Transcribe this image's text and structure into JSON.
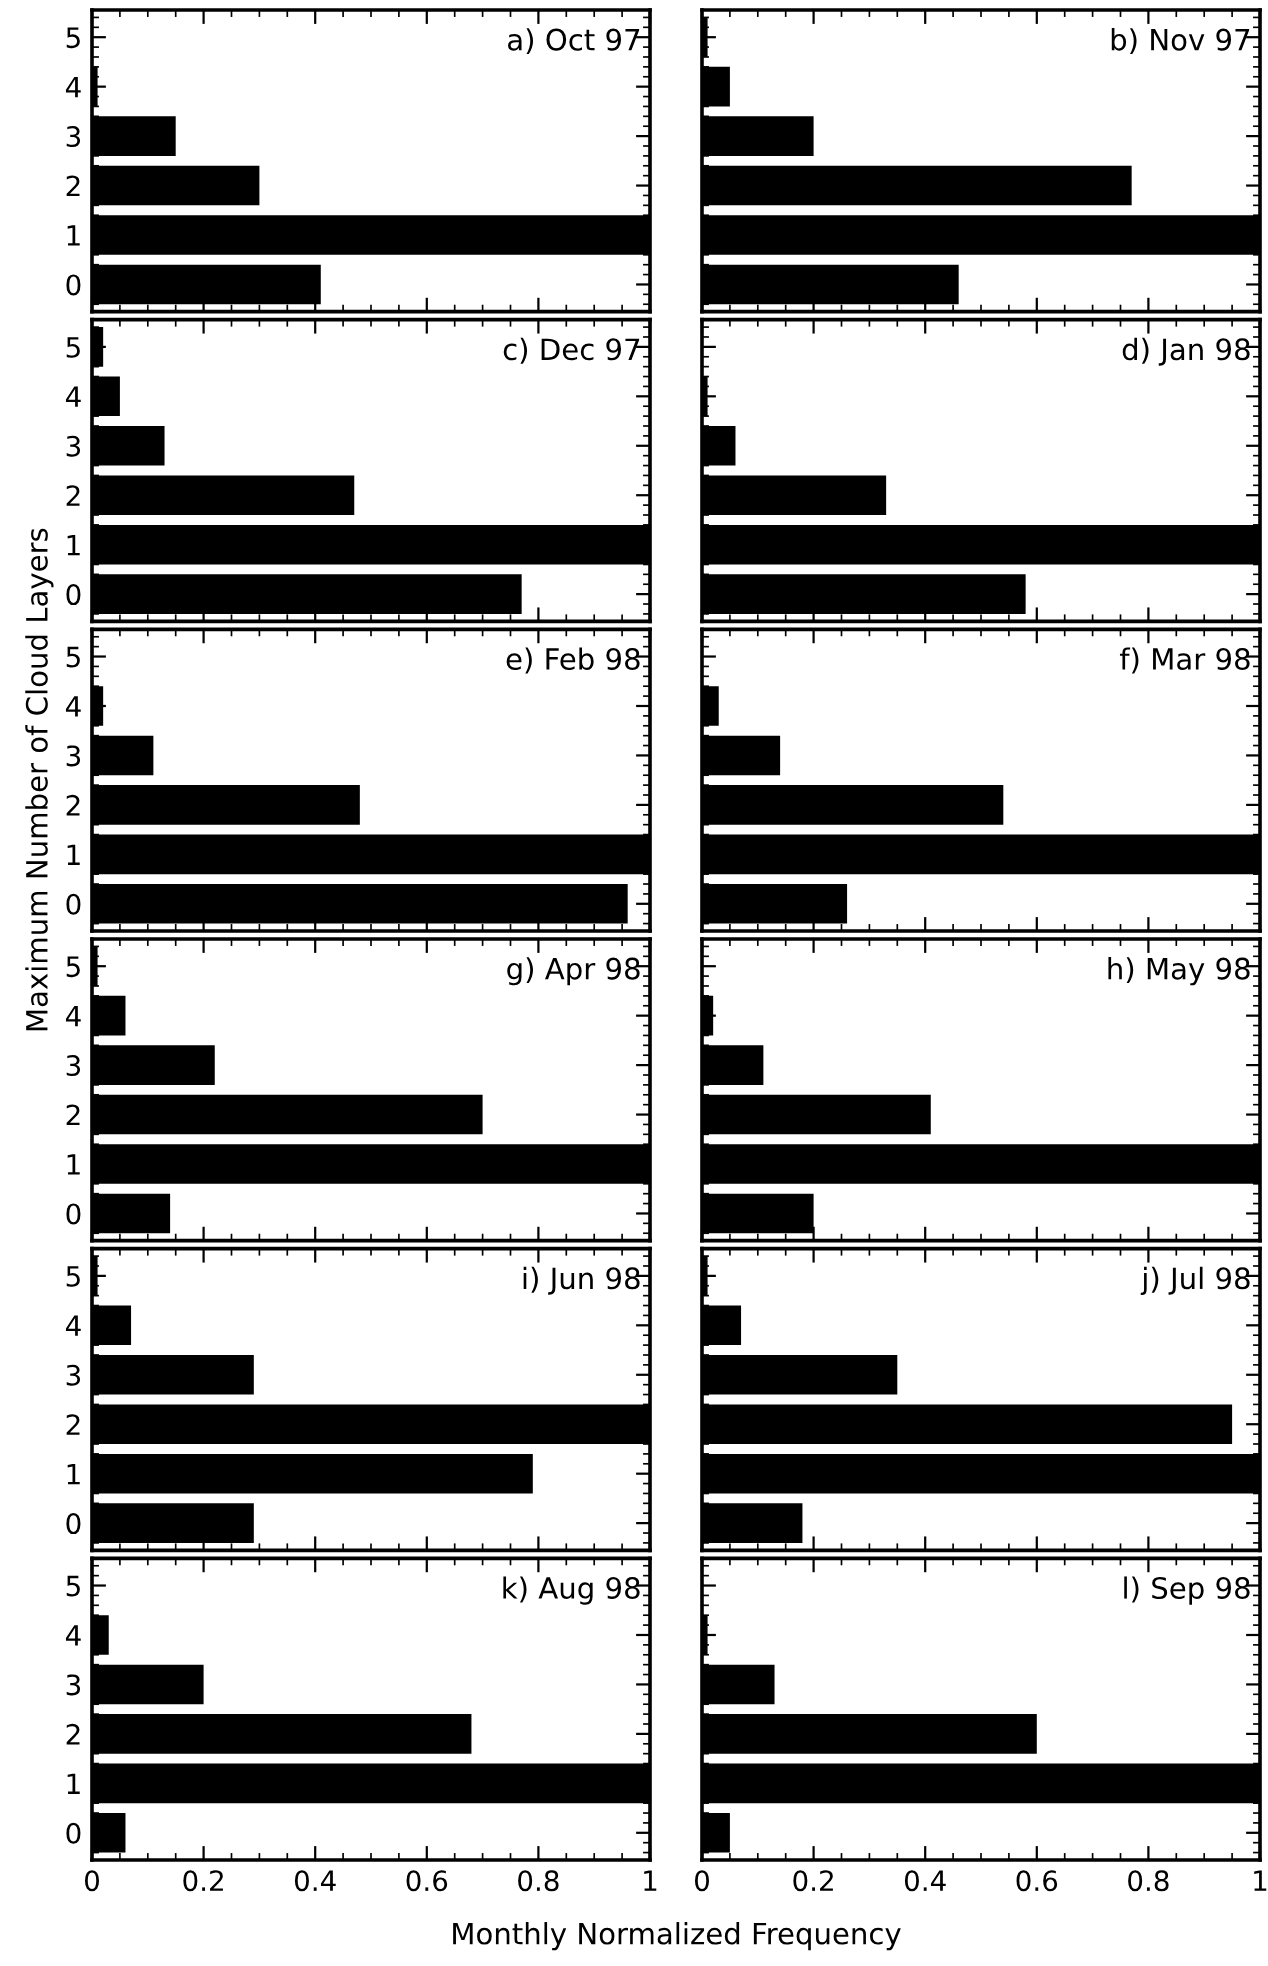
{
  "chart_data": [
    {
      "type": "bar",
      "orientation": "horizontal",
      "title": "a) Oct 97",
      "categories": [
        "5",
        "4",
        "3",
        "2",
        "1",
        "0"
      ],
      "values": [
        0,
        0.01,
        0.15,
        0.3,
        1,
        0.41
      ],
      "color": "#000000",
      "xlim": [
        0,
        1
      ],
      "xticks": [
        0,
        0.2,
        0.4,
        0.6,
        0.8,
        1
      ],
      "tick_labels": "y",
      "grid": false,
      "legend": false
    },
    {
      "type": "bar",
      "orientation": "horizontal",
      "title": "b) Nov 97",
      "categories": [
        "5",
        "4",
        "3",
        "2",
        "1",
        "0"
      ],
      "values": [
        0.01,
        0.05,
        0.2,
        0.77,
        1,
        0.46
      ],
      "color": "#000000",
      "xlim": [
        0,
        1
      ],
      "xticks": [
        0,
        0.2,
        0.4,
        0.6,
        0.8,
        1
      ],
      "tick_labels": false,
      "grid": false,
      "legend": false
    },
    {
      "type": "bar",
      "orientation": "horizontal",
      "title": "c) Dec 97",
      "categories": [
        "5",
        "4",
        "3",
        "2",
        "1",
        "0"
      ],
      "values": [
        0.02,
        0.05,
        0.13,
        0.47,
        1,
        0.77
      ],
      "color": "#000000",
      "xlim": [
        0,
        1
      ],
      "xticks": [
        0,
        0.2,
        0.4,
        0.6,
        0.8,
        1
      ],
      "tick_labels": "y",
      "grid": false,
      "legend": false
    },
    {
      "type": "bar",
      "orientation": "horizontal",
      "title": "d) Jan 98",
      "categories": [
        "5",
        "4",
        "3",
        "2",
        "1",
        "0"
      ],
      "values": [
        0,
        0.01,
        0.06,
        0.33,
        1,
        0.58
      ],
      "color": "#000000",
      "xlim": [
        0,
        1
      ],
      "xticks": [
        0,
        0.2,
        0.4,
        0.6,
        0.8,
        1
      ],
      "tick_labels": false,
      "grid": false,
      "legend": false
    },
    {
      "type": "bar",
      "orientation": "horizontal",
      "title": "e) Feb 98",
      "ylabel": "Maximum Number of Cloud Layers",
      "categories": [
        "5",
        "4",
        "3",
        "2",
        "1",
        "0"
      ],
      "values": [
        0,
        0.02,
        0.11,
        0.48,
        1,
        0.96
      ],
      "color": "#000000",
      "xlim": [
        0,
        1
      ],
      "xticks": [
        0,
        0.2,
        0.4,
        0.6,
        0.8,
        1
      ],
      "tick_labels": "y",
      "grid": false,
      "legend": false
    },
    {
      "type": "bar",
      "orientation": "horizontal",
      "title": "f) Mar 98",
      "categories": [
        "5",
        "4",
        "3",
        "2",
        "1",
        "0"
      ],
      "values": [
        0,
        0.03,
        0.14,
        0.54,
        1,
        0.26
      ],
      "color": "#000000",
      "xlim": [
        0,
        1
      ],
      "xticks": [
        0,
        0.2,
        0.4,
        0.6,
        0.8,
        1
      ],
      "tick_labels": false,
      "grid": false,
      "legend": false
    },
    {
      "type": "bar",
      "orientation": "horizontal",
      "title": "g) Apr 98",
      "categories": [
        "5",
        "4",
        "3",
        "2",
        "1",
        "0"
      ],
      "values": [
        0.01,
        0.06,
        0.22,
        0.7,
        1,
        0.14
      ],
      "color": "#000000",
      "xlim": [
        0,
        1
      ],
      "xticks": [
        0,
        0.2,
        0.4,
        0.6,
        0.8,
        1
      ],
      "tick_labels": "y",
      "grid": false,
      "legend": false
    },
    {
      "type": "bar",
      "orientation": "horizontal",
      "title": "h) May 98",
      "categories": [
        "5",
        "4",
        "3",
        "2",
        "1",
        "0"
      ],
      "values": [
        0,
        0.02,
        0.11,
        0.41,
        1,
        0.2
      ],
      "color": "#000000",
      "xlim": [
        0,
        1
      ],
      "xticks": [
        0,
        0.2,
        0.4,
        0.6,
        0.8,
        1
      ],
      "tick_labels": false,
      "grid": false,
      "legend": false
    },
    {
      "type": "bar",
      "orientation": "horizontal",
      "title": "i) Jun 98",
      "categories": [
        "5",
        "4",
        "3",
        "2",
        "1",
        "0"
      ],
      "values": [
        0.01,
        0.07,
        0.29,
        1,
        0.79,
        0.29
      ],
      "color": "#000000",
      "xlim": [
        0,
        1
      ],
      "xticks": [
        0,
        0.2,
        0.4,
        0.6,
        0.8,
        1
      ],
      "tick_labels": "y",
      "grid": false,
      "legend": false
    },
    {
      "type": "bar",
      "orientation": "horizontal",
      "title": "j) Jul 98",
      "categories": [
        "5",
        "4",
        "3",
        "2",
        "1",
        "0"
      ],
      "values": [
        0.01,
        0.07,
        0.35,
        0.95,
        1,
        0.18
      ],
      "color": "#000000",
      "xlim": [
        0,
        1
      ],
      "xticks": [
        0,
        0.2,
        0.4,
        0.6,
        0.8,
        1
      ],
      "tick_labels": false,
      "grid": false,
      "legend": false
    },
    {
      "type": "bar",
      "orientation": "horizontal",
      "title": "k) Aug 98",
      "categories": [
        "5",
        "4",
        "3",
        "2",
        "1",
        "0"
      ],
      "values": [
        0,
        0.03,
        0.2,
        0.68,
        1,
        0.06
      ],
      "color": "#000000",
      "xlim": [
        0,
        1
      ],
      "xticks": [
        0,
        0.2,
        0.4,
        0.6,
        0.8,
        1
      ],
      "grid": false,
      "legend": false
    },
    {
      "type": "bar",
      "orientation": "horizontal",
      "title": "l) Sep 98",
      "xlabel": "Monthly Normalized Frequency",
      "categories": [
        "5",
        "4",
        "3",
        "2",
        "1",
        "0"
      ],
      "values": [
        0,
        0.01,
        0.13,
        0.6,
        1,
        0.05
      ],
      "color": "#000000",
      "xlim": [
        0,
        1
      ],
      "xticks": [
        0,
        0.2,
        0.4,
        0.6,
        0.8,
        1
      ],
      "tick_labels": "x",
      "grid": false,
      "legend": false
    }
  ]
}
